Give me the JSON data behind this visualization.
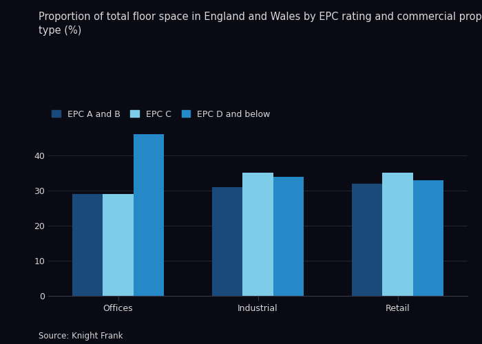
{
  "title_line1": "Proportion of total floor space in England and Wales by EPC rating and commercial property",
  "title_line2": "type (%)",
  "source": "Source: Knight Frank",
  "categories": [
    "Offices",
    "Industrial",
    "Retail"
  ],
  "series": [
    {
      "label": "EPC A and B",
      "values": [
        29,
        31,
        32
      ],
      "color": "#1a4a7a"
    },
    {
      "label": "EPC C",
      "values": [
        29,
        35,
        35
      ],
      "color": "#7ecde8"
    },
    {
      "label": "EPC D and below",
      "values": [
        46,
        34,
        33
      ],
      "color": "#2589c8"
    }
  ],
  "ylim": [
    0,
    50
  ],
  "yticks": [
    0,
    10,
    20,
    30,
    40
  ],
  "bar_width": 0.22,
  "figure_bg": "#0a0a14",
  "axes_bg": "#0a0a14",
  "text_color": "#d8d8d8",
  "grid_color": "#2a2a3a",
  "spine_color": "#3a3a4a",
  "title_fontsize": 10.5,
  "tick_fontsize": 9,
  "legend_fontsize": 9
}
